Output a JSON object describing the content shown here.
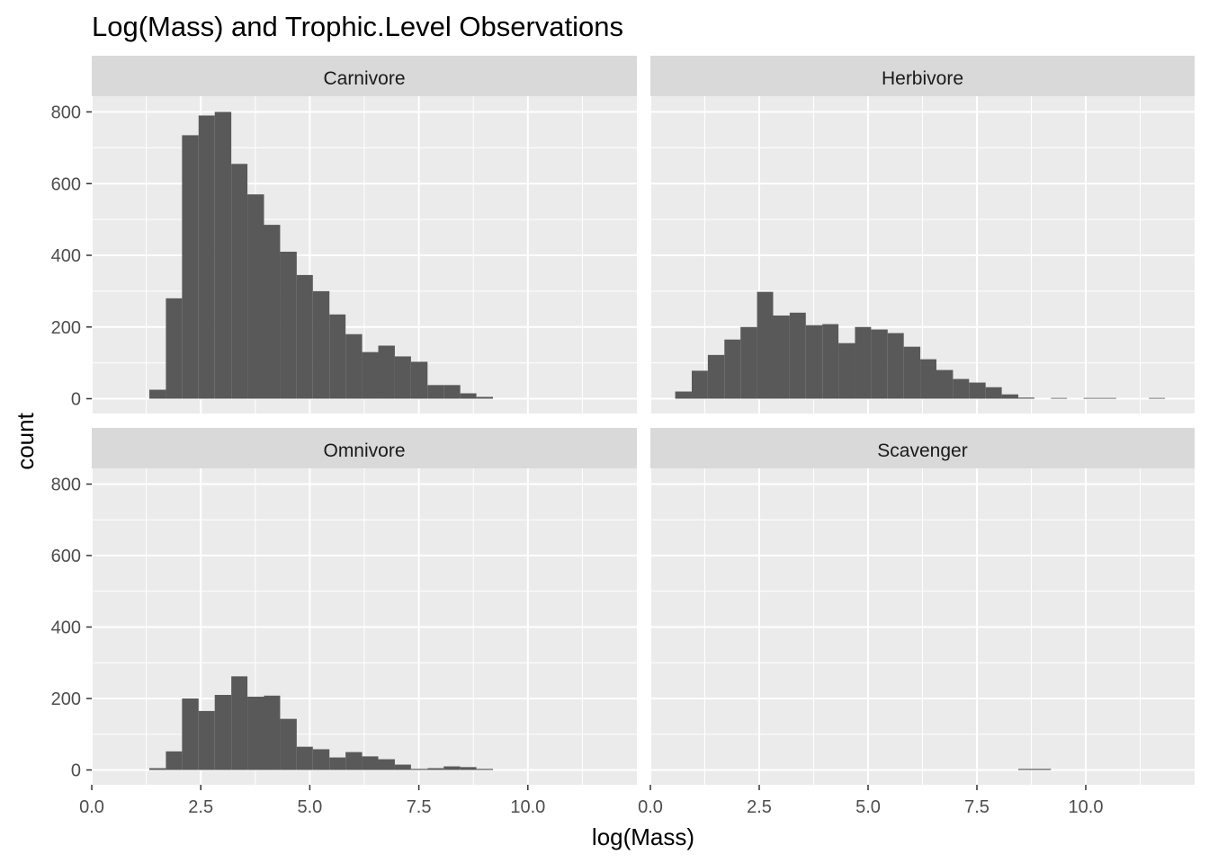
{
  "chart_data": {
    "type": "bar",
    "chart_kind": "faceted-histogram",
    "title": "Log(Mass) and Trophic.Level Observations",
    "xlabel": "log(Mass)",
    "ylabel": "count",
    "xlim": [
      0,
      12.5
    ],
    "ylim": [
      0,
      850
    ],
    "x_ticks": [
      0,
      2.5,
      5,
      7.5,
      10
    ],
    "x_tick_labels": [
      "0.0",
      "2.5",
      "5.0",
      "7.5",
      "10.0"
    ],
    "y_ticks": [
      0,
      200,
      400,
      600,
      800
    ],
    "y_tick_labels": [
      "0",
      "200",
      "400",
      "600",
      "800"
    ],
    "grid": true,
    "panel_background": "#ebebeb",
    "strip_background": "#d9d9d9",
    "bar_color": "#595959",
    "facets": [
      {
        "name": "Carnivore",
        "bins": [
          {
            "x0": 1.32,
            "x1": 1.7,
            "count": 25
          },
          {
            "x0": 1.7,
            "x1": 2.07,
            "count": 280
          },
          {
            "x0": 2.07,
            "x1": 2.45,
            "count": 735
          },
          {
            "x0": 2.45,
            "x1": 2.82,
            "count": 790
          },
          {
            "x0": 2.82,
            "x1": 3.2,
            "count": 800
          },
          {
            "x0": 3.2,
            "x1": 3.57,
            "count": 655
          },
          {
            "x0": 3.57,
            "x1": 3.95,
            "count": 570
          },
          {
            "x0": 3.95,
            "x1": 4.32,
            "count": 485
          },
          {
            "x0": 4.32,
            "x1": 4.7,
            "count": 410
          },
          {
            "x0": 4.7,
            "x1": 5.07,
            "count": 345
          },
          {
            "x0": 5.07,
            "x1": 5.45,
            "count": 300
          },
          {
            "x0": 5.45,
            "x1": 5.82,
            "count": 235
          },
          {
            "x0": 5.82,
            "x1": 6.2,
            "count": 180
          },
          {
            "x0": 6.2,
            "x1": 6.57,
            "count": 130
          },
          {
            "x0": 6.57,
            "x1": 6.95,
            "count": 148
          },
          {
            "x0": 6.95,
            "x1": 7.32,
            "count": 118
          },
          {
            "x0": 7.32,
            "x1": 7.7,
            "count": 103
          },
          {
            "x0": 7.7,
            "x1": 8.07,
            "count": 38
          },
          {
            "x0": 8.07,
            "x1": 8.45,
            "count": 38
          },
          {
            "x0": 8.45,
            "x1": 8.82,
            "count": 15
          },
          {
            "x0": 8.82,
            "x1": 9.2,
            "count": 5
          }
        ]
      },
      {
        "name": "Herbivore",
        "bins": [
          {
            "x0": 0.57,
            "x1": 0.95,
            "count": 20
          },
          {
            "x0": 0.95,
            "x1": 1.32,
            "count": 78
          },
          {
            "x0": 1.32,
            "x1": 1.7,
            "count": 122
          },
          {
            "x0": 1.7,
            "x1": 2.07,
            "count": 165
          },
          {
            "x0": 2.07,
            "x1": 2.45,
            "count": 200
          },
          {
            "x0": 2.45,
            "x1": 2.82,
            "count": 298
          },
          {
            "x0": 2.82,
            "x1": 3.2,
            "count": 232
          },
          {
            "x0": 3.2,
            "x1": 3.57,
            "count": 240
          },
          {
            "x0": 3.57,
            "x1": 3.95,
            "count": 205
          },
          {
            "x0": 3.95,
            "x1": 4.32,
            "count": 208
          },
          {
            "x0": 4.32,
            "x1": 4.7,
            "count": 155
          },
          {
            "x0": 4.7,
            "x1": 5.07,
            "count": 200
          },
          {
            "x0": 5.07,
            "x1": 5.45,
            "count": 193
          },
          {
            "x0": 5.45,
            "x1": 5.82,
            "count": 183
          },
          {
            "x0": 5.82,
            "x1": 6.2,
            "count": 145
          },
          {
            "x0": 6.2,
            "x1": 6.57,
            "count": 110
          },
          {
            "x0": 6.57,
            "x1": 6.95,
            "count": 80
          },
          {
            "x0": 6.95,
            "x1": 7.32,
            "count": 55
          },
          {
            "x0": 7.32,
            "x1": 7.7,
            "count": 45
          },
          {
            "x0": 7.7,
            "x1": 8.07,
            "count": 32
          },
          {
            "x0": 8.07,
            "x1": 8.45,
            "count": 12
          },
          {
            "x0": 8.45,
            "x1": 8.82,
            "count": 3
          },
          {
            "x0": 9.2,
            "x1": 9.57,
            "count": 2
          },
          {
            "x0": 9.95,
            "x1": 10.32,
            "count": 2
          },
          {
            "x0": 10.32,
            "x1": 10.7,
            "count": 2
          },
          {
            "x0": 11.45,
            "x1": 11.82,
            "count": 2
          }
        ]
      },
      {
        "name": "Omnivore",
        "bins": [
          {
            "x0": 1.32,
            "x1": 1.7,
            "count": 5
          },
          {
            "x0": 1.7,
            "x1": 2.07,
            "count": 52
          },
          {
            "x0": 2.07,
            "x1": 2.45,
            "count": 200
          },
          {
            "x0": 2.45,
            "x1": 2.82,
            "count": 165
          },
          {
            "x0": 2.82,
            "x1": 3.2,
            "count": 210
          },
          {
            "x0": 3.2,
            "x1": 3.57,
            "count": 262
          },
          {
            "x0": 3.57,
            "x1": 3.95,
            "count": 205
          },
          {
            "x0": 3.95,
            "x1": 4.32,
            "count": 208
          },
          {
            "x0": 4.32,
            "x1": 4.7,
            "count": 143
          },
          {
            "x0": 4.7,
            "x1": 5.07,
            "count": 65
          },
          {
            "x0": 5.07,
            "x1": 5.45,
            "count": 58
          },
          {
            "x0": 5.45,
            "x1": 5.82,
            "count": 35
          },
          {
            "x0": 5.82,
            "x1": 6.2,
            "count": 50
          },
          {
            "x0": 6.2,
            "x1": 6.57,
            "count": 38
          },
          {
            "x0": 6.57,
            "x1": 6.95,
            "count": 30
          },
          {
            "x0": 6.95,
            "x1": 7.32,
            "count": 15
          },
          {
            "x0": 7.32,
            "x1": 7.7,
            "count": 3
          },
          {
            "x0": 7.7,
            "x1": 8.07,
            "count": 5
          },
          {
            "x0": 8.07,
            "x1": 8.45,
            "count": 10
          },
          {
            "x0": 8.45,
            "x1": 8.82,
            "count": 8
          },
          {
            "x0": 8.82,
            "x1": 9.2,
            "count": 3
          }
        ]
      },
      {
        "name": "Scavenger",
        "bins": [
          {
            "x0": 8.45,
            "x1": 9.2,
            "count": 3
          }
        ]
      }
    ]
  }
}
